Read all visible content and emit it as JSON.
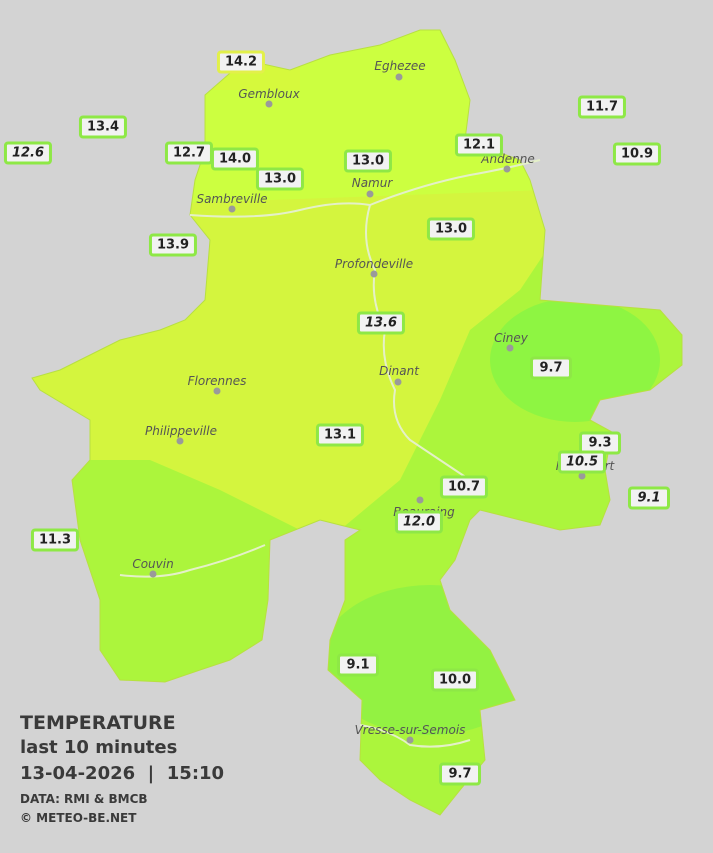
{
  "legend": {
    "title": "TEMPERATURE",
    "subtitle": "last 10 minutes",
    "timestamp": "13-04-2026  |  15:10",
    "source": "DATA: RMI & BMCB",
    "copyright": "© METEO-BE.NET"
  },
  "cities": [
    "Eghezee",
    "Gembloux",
    "Andenne",
    "Namur",
    "Sambreville",
    "Profondeville",
    "Ciney",
    "Dinant",
    "Florennes",
    "Philippeville",
    "Rochefort",
    "Beauraing",
    "Couvin",
    "Vresse-sur-Semois"
  ],
  "stations": [
    "14.2",
    "13.4",
    "12.6",
    "12.7",
    "14.0",
    "13.0",
    "13.0",
    "12.1",
    "11.7",
    "10.9",
    "13.9",
    "13.0",
    "13.6",
    "9.7",
    "13.1",
    "9.3",
    "10.5",
    "10.7",
    "9.1",
    "12.0",
    "11.3",
    "9.1",
    "10.0",
    "9.7"
  ]
}
